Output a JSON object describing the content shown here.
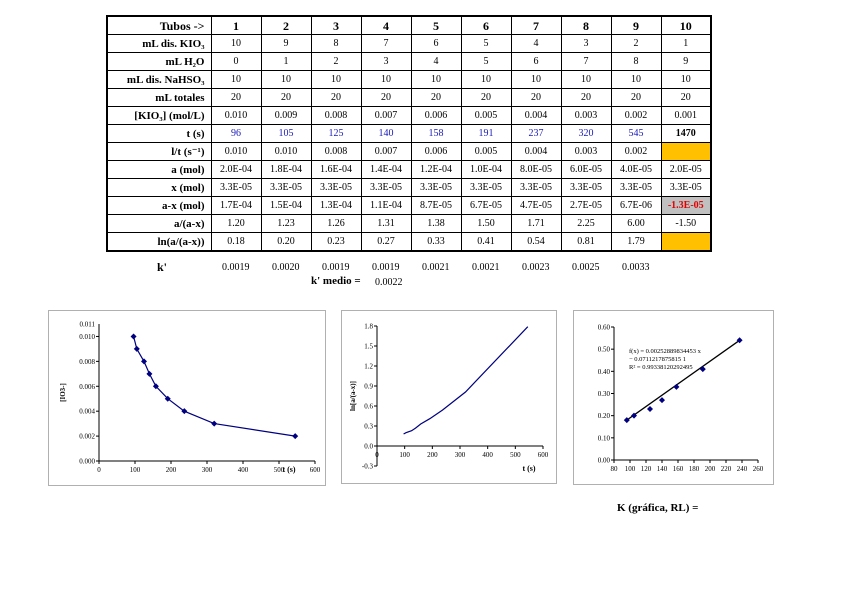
{
  "table": {
    "header": {
      "label": "Tubos ->",
      "cols": [
        "1",
        "2",
        "3",
        "4",
        "5",
        "6",
        "7",
        "8",
        "9",
        "10"
      ]
    },
    "rows": [
      {
        "label": "mL dis. KIO₃",
        "cells": [
          "10",
          "9",
          "8",
          "7",
          "6",
          "5",
          "4",
          "3",
          "2",
          "1"
        ]
      },
      {
        "label": "mL H₂O",
        "cells": [
          "0",
          "1",
          "2",
          "3",
          "4",
          "5",
          "6",
          "7",
          "8",
          "9"
        ]
      },
      {
        "label": "mL dis. NaHSO₃",
        "cells": [
          "10",
          "10",
          "10",
          "10",
          "10",
          "10",
          "10",
          "10",
          "10",
          "10"
        ]
      },
      {
        "label": "mL totales",
        "cells": [
          "20",
          "20",
          "20",
          "20",
          "20",
          "20",
          "20",
          "20",
          "20",
          "20"
        ]
      },
      {
        "label": "[KIO₃] (mol/L)",
        "cells": [
          "0.010",
          "0.009",
          "0.008",
          "0.007",
          "0.006",
          "0.005",
          "0.004",
          "0.003",
          "0.002",
          "0.001"
        ]
      },
      {
        "label": "t (s)",
        "cells": [
          "96",
          "105",
          "125",
          "140",
          "158",
          "191",
          "237",
          "320",
          "545",
          "1470"
        ]
      },
      {
        "label": "l/t (s⁻¹)",
        "cells": [
          "0.010",
          "0.010",
          "0.008",
          "0.007",
          "0.006",
          "0.005",
          "0.004",
          "0.003",
          "0.002",
          ""
        ]
      },
      {
        "label": "a (mol)",
        "cells": [
          "2.0E-04",
          "1.8E-04",
          "1.6E-04",
          "1.4E-04",
          "1.2E-04",
          "1.0E-04",
          "8.0E-05",
          "6.0E-05",
          "4.0E-05",
          "2.0E-05"
        ]
      },
      {
        "label": "x (mol)",
        "cells": [
          "3.3E-05",
          "3.3E-05",
          "3.3E-05",
          "3.3E-05",
          "3.3E-05",
          "3.3E-05",
          "3.3E-05",
          "3.3E-05",
          "3.3E-05",
          "3.3E-05"
        ]
      },
      {
        "label": "a-x (mol)",
        "cells": [
          "1.7E-04",
          "1.5E-04",
          "1.3E-04",
          "1.1E-04",
          "8.7E-05",
          "6.7E-05",
          "4.7E-05",
          "2.7E-05",
          "6.7E-06",
          "-1.3E-05"
        ]
      },
      {
        "label": "a/(a-x)",
        "cells": [
          "1.20",
          "1.23",
          "1.26",
          "1.31",
          "1.38",
          "1.50",
          "1.71",
          "2.25",
          "6.00",
          "-1.50"
        ]
      },
      {
        "label": "ln(a/(a-x))",
        "cells": [
          "0.18",
          "0.20",
          "0.23",
          "0.27",
          "0.33",
          "0.41",
          "0.54",
          "0.81",
          "1.79",
          ""
        ]
      }
    ]
  },
  "k_row": {
    "label": "k'",
    "values": [
      "0.0019",
      "0.0020",
      "0.0019",
      "0.0019",
      "0.0021",
      "0.0021",
      "0.0023",
      "0.0025",
      "0.0033"
    ]
  },
  "k_medio": {
    "label": "k' medio =",
    "value": "0.0022"
  },
  "k_grafica_label": "K (gráfica, RL) =",
  "colors": {
    "line": "#000080",
    "highlight_yellow": "#ffc000",
    "neg_red": "#e00000",
    "blue_text": "#1a1ab8"
  },
  "chart_data": [
    {
      "type": "line",
      "title": "",
      "xlabel": "t (s)",
      "ylabel": "[IO3-]",
      "x": [
        96,
        105,
        125,
        140,
        158,
        191,
        237,
        320,
        545
      ],
      "y": [
        0.01,
        0.009,
        0.008,
        0.007,
        0.006,
        0.005,
        0.004,
        0.003,
        0.002
      ],
      "xlim": [
        0,
        600
      ],
      "ylim": [
        0,
        0.011
      ],
      "xticks": [
        "0",
        "100",
        "200",
        "300",
        "400",
        "500",
        "600"
      ],
      "yticks": [
        "0.000",
        "0.002",
        "0.004",
        "0.006",
        "0.008",
        "0.010"
      ],
      "ytop": "0.011",
      "markers": true
    },
    {
      "type": "line",
      "title": "",
      "xlabel": "t (s)",
      "ylabel": "ln[a/(a-x)]",
      "x": [
        96,
        105,
        125,
        140,
        158,
        191,
        237,
        320,
        545
      ],
      "y": [
        0.18,
        0.2,
        0.23,
        0.27,
        0.33,
        0.41,
        0.54,
        0.81,
        1.79
      ],
      "xlim": [
        0,
        600
      ],
      "ylim": [
        -0.3,
        1.8
      ],
      "xticks": [
        "0",
        "100",
        "200",
        "300",
        "400",
        "500",
        "600"
      ],
      "yticks": [
        "-0.3",
        "0.0",
        "0.3",
        "0.6",
        "0.9",
        "1.2",
        "1.5",
        "1.8"
      ],
      "markers": false
    },
    {
      "type": "scatter",
      "title": "",
      "xlabel": "",
      "ylabel": "",
      "x": [
        96,
        105,
        125,
        140,
        158,
        191,
        237
      ],
      "y": [
        0.18,
        0.2,
        0.23,
        0.27,
        0.33,
        0.41,
        0.54
      ],
      "fit": {
        "x0": 96,
        "y0": 0.18,
        "x1": 237,
        "y1": 0.54
      },
      "xlim": [
        80,
        260
      ],
      "ylim": [
        0,
        0.6
      ],
      "xticks": [
        "80",
        "100",
        "120",
        "140",
        "160",
        "180",
        "200",
        "220",
        "240",
        "260"
      ],
      "yticks": [
        "0.00",
        "0.10",
        "0.20",
        "0.30",
        "0.40",
        "0.50",
        "0.60"
      ],
      "annotation": [
        "f(x) = 0.00252889834453 x",
        "− 0.0711217875815 1",
        "R² = 0.99338120292495"
      ]
    }
  ]
}
